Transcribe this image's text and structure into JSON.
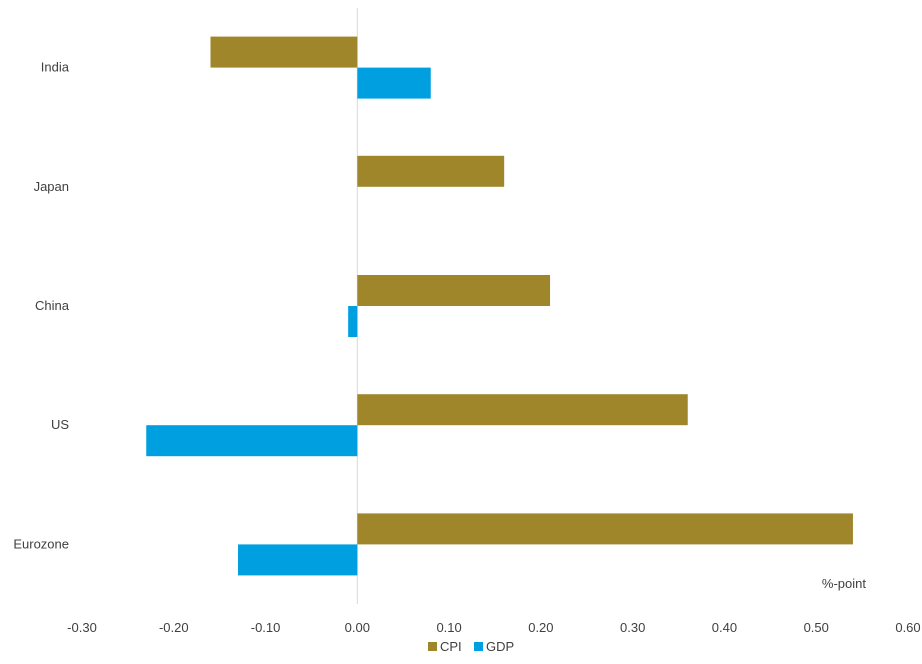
{
  "chart_data": {
    "type": "bar",
    "orientation": "horizontal",
    "categories": [
      "India",
      "Japan",
      "China",
      "US",
      "Eurozone"
    ],
    "series": [
      {
        "name": "CPI",
        "color": "#A0862A",
        "values": [
          -0.16,
          0.16,
          0.21,
          0.36,
          0.54
        ]
      },
      {
        "name": "GDP",
        "color": "#009FDF",
        "values": [
          0.08,
          null,
          -0.01,
          -0.23,
          -0.13
        ]
      }
    ],
    "x_ticks": [
      "-0.30",
      "-0.20",
      "-0.10",
      "0.00",
      "0.10",
      "0.20",
      "0.30",
      "0.40",
      "0.50",
      "0.60"
    ],
    "xlim": [
      -0.3,
      0.6
    ],
    "xlabel": "%-point",
    "grid": false,
    "legend": "bottom"
  }
}
